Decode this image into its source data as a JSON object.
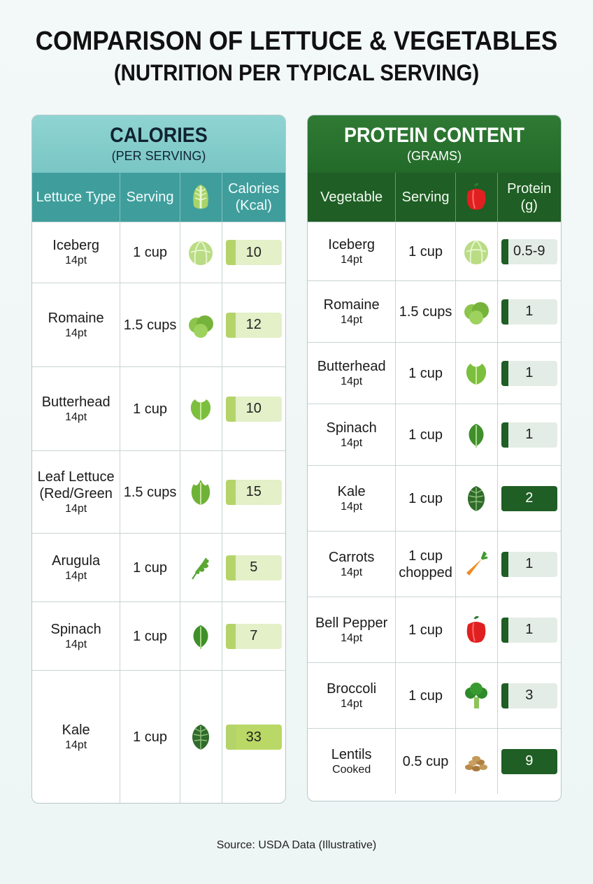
{
  "title": "COMPARISON OF LETTUCE & VEGETABLES",
  "subtitle": "(NUTRITION PER TYPICAL SERVING)",
  "calories": {
    "heading": "CALORIES",
    "subheading": "(PER SERVING)",
    "columns": [
      "Lettuce Type",
      "Serving",
      "",
      "Calories (Kcal)"
    ],
    "header_icon": "lettuce-icon",
    "rows": [
      {
        "name": "Iceberg",
        "sub": "14pt",
        "serving": "1 cup",
        "icon": "iceberg-icon",
        "value": "10",
        "strong": false
      },
      {
        "name": "Romaine",
        "sub": "14pt",
        "serving": "1.5 cups",
        "icon": "romaine-icon",
        "value": "12",
        "strong": false
      },
      {
        "name": "Butterhead",
        "sub": "14pt",
        "serving": "1 cup",
        "icon": "butterhead-icon",
        "value": "10",
        "strong": false
      },
      {
        "name": "Leaf Lettuce (Red/Green",
        "sub": "14pt",
        "serving": "1.5 cups",
        "icon": "leaf-lettuce-icon",
        "value": "15",
        "strong": false
      },
      {
        "name": "Arugula",
        "sub": "14pt",
        "serving": "1 cup",
        "icon": "arugula-icon",
        "value": "5",
        "strong": false
      },
      {
        "name": "Spinach",
        "sub": "14pt",
        "serving": "1 cup",
        "icon": "spinach-icon",
        "value": "7",
        "strong": false
      },
      {
        "name": "Kale",
        "sub": "14pt",
        "serving": "1 cup",
        "icon": "kale-icon",
        "value": "33",
        "strong": true
      }
    ]
  },
  "protein": {
    "heading": "PROTEIN CONTENT",
    "subheading": "(GRAMS)",
    "columns": [
      "Vegetable",
      "Serving",
      "",
      "Protein (g)"
    ],
    "header_icon": "bell-pepper-icon",
    "rows": [
      {
        "name": "Iceberg",
        "sub": "14pt",
        "serving": "1 cup",
        "icon": "iceberg-icon",
        "value": "0.5-9",
        "strong": false
      },
      {
        "name": "Romaine",
        "sub": "14pt",
        "serving": "1.5 cups",
        "icon": "romaine-icon",
        "value": "1",
        "strong": false
      },
      {
        "name": "Butterhead",
        "sub": "14pt",
        "serving": "1 cup",
        "icon": "butterhead-icon",
        "value": "1",
        "strong": false
      },
      {
        "name": "Spinach",
        "sub": "14pt",
        "serving": "1 cup",
        "icon": "spinach-icon",
        "value": "1",
        "strong": false
      },
      {
        "name": "Kale",
        "sub": "14pt",
        "serving": "1 cup",
        "icon": "kale-icon",
        "value": "2",
        "strong": true
      },
      {
        "name": "Carrots",
        "sub": "14pt",
        "serving": "1 cup chopped",
        "icon": "carrot-icon",
        "value": "1",
        "strong": false
      },
      {
        "name": "Bell Pepper",
        "sub": "14pt",
        "serving": "1 cup",
        "icon": "bell-pepper-icon",
        "value": "1",
        "strong": false
      },
      {
        "name": "Broccoli",
        "sub": "14pt",
        "serving": "1 cup",
        "icon": "broccoli-icon",
        "value": "3",
        "strong": false
      },
      {
        "name": "Lentils",
        "sub": "Cooked",
        "serving": "0.5 cup",
        "icon": "lentils-icon",
        "value": "9",
        "strong": true
      }
    ]
  },
  "source": "Source: USDA Data (Illustrative)"
}
